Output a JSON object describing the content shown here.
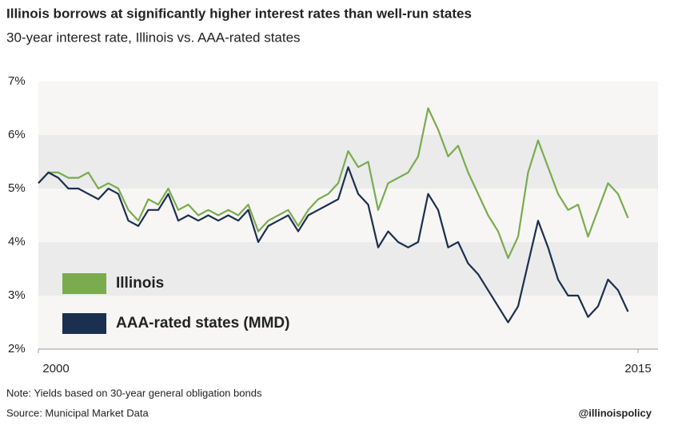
{
  "chart_data": {
    "type": "line",
    "title": "Illinois borrows at significantly higher interest rates than well-run states",
    "subtitle": "30-year interest rate, Illinois vs. AAA-rated states",
    "note": "Note: Yields based on 30-year general obligation bonds",
    "source": "Source: Municipal Market Data",
    "credit": "@illinoispolicy",
    "x": [
      2000,
      2000.25,
      2000.5,
      2000.75,
      2001,
      2001.25,
      2001.5,
      2001.75,
      2002,
      2002.25,
      2002.5,
      2002.75,
      2003,
      2003.25,
      2003.5,
      2003.75,
      2004,
      2004.25,
      2004.5,
      2004.75,
      2005,
      2005.25,
      2005.5,
      2005.75,
      2006,
      2006.25,
      2006.5,
      2006.75,
      2007,
      2007.25,
      2007.5,
      2007.75,
      2008,
      2008.25,
      2008.5,
      2008.75,
      2009,
      2009.25,
      2009.5,
      2009.75,
      2010,
      2010.25,
      2010.5,
      2010.75,
      2011,
      2011.25,
      2011.5,
      2011.75,
      2012,
      2012.25,
      2012.5,
      2012.75,
      2013,
      2013.25,
      2013.5,
      2013.75,
      2014,
      2014.25,
      2014.5,
      2014.75
    ],
    "series": [
      {
        "name": "Illinois",
        "color": "#7aab4e",
        "values": [
          5.1,
          5.3,
          5.3,
          5.2,
          5.2,
          5.3,
          5.0,
          5.1,
          5.0,
          4.6,
          4.4,
          4.8,
          4.7,
          5.0,
          4.6,
          4.7,
          4.5,
          4.6,
          4.5,
          4.6,
          4.5,
          4.7,
          4.2,
          4.4,
          4.5,
          4.6,
          4.3,
          4.6,
          4.8,
          4.9,
          5.1,
          5.7,
          5.4,
          5.5,
          4.6,
          5.1,
          5.2,
          5.3,
          5.6,
          6.5,
          6.1,
          5.6,
          5.8,
          5.3,
          4.9,
          4.5,
          4.2,
          3.7,
          4.1,
          5.3,
          5.9,
          5.4,
          4.9,
          4.6,
          4.7,
          4.1,
          4.6,
          5.1,
          4.9,
          4.45
        ]
      },
      {
        "name": "AAA-rated states (MMD)",
        "color": "#1b2f4e",
        "values": [
          5.1,
          5.3,
          5.2,
          5.0,
          5.0,
          4.9,
          4.8,
          5.0,
          4.9,
          4.4,
          4.3,
          4.6,
          4.6,
          4.9,
          4.4,
          4.5,
          4.4,
          4.5,
          4.4,
          4.5,
          4.4,
          4.6,
          4.0,
          4.3,
          4.4,
          4.5,
          4.2,
          4.5,
          4.6,
          4.7,
          4.8,
          5.4,
          4.9,
          4.7,
          3.9,
          4.2,
          4.0,
          3.9,
          4.0,
          4.9,
          4.6,
          3.9,
          4.0,
          3.6,
          3.4,
          3.1,
          2.8,
          2.5,
          2.8,
          3.6,
          4.4,
          3.9,
          3.3,
          3.0,
          3.0,
          2.6,
          2.8,
          3.3,
          3.1,
          2.7
        ]
      }
    ],
    "xlim": [
      2000,
      2015.5
    ],
    "xticks": [
      2000,
      2015
    ],
    "ylim": [
      2,
      7
    ],
    "yticks": [
      {
        "value": 2,
        "label": "2%"
      },
      {
        "value": 3,
        "label": "3%"
      },
      {
        "value": 4,
        "label": "4%"
      },
      {
        "value": 5,
        "label": "5%"
      },
      {
        "value": 6,
        "label": "6%"
      },
      {
        "value": 7,
        "label": "7%"
      }
    ]
  }
}
